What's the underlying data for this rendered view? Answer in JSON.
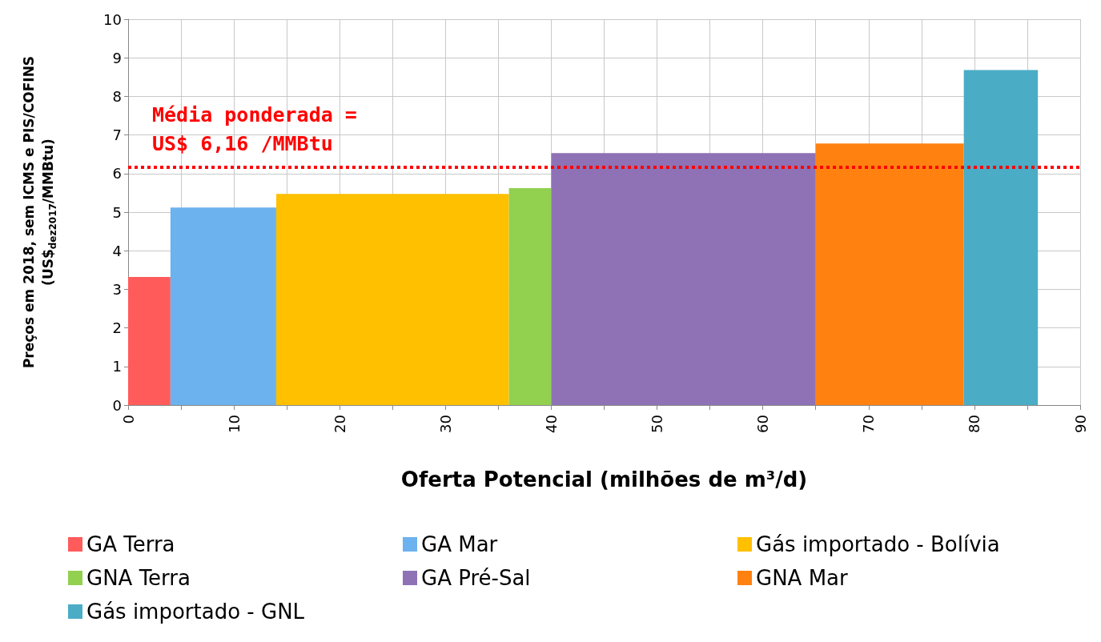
{
  "chart_data": {
    "type": "histogram",
    "xlabel": "Oferta Potencial (milhões de m³/d)",
    "ylabel": "Preços em 2018, sem ICMS e PIS/COFINS\n(US$$_{dez2017}$/MMBtu)",
    "bins": [
      0,
      4,
      14,
      36,
      40,
      65,
      79,
      86
    ],
    "series": [
      {
        "name": "GA Terra",
        "color": "#ff5b5b",
        "values": [
          3.32,
          null,
          null,
          null,
          null,
          null,
          null
        ]
      },
      {
        "name": "GA Mar",
        "color": "#6cb2ee",
        "values": [
          null,
          5.12,
          null,
          null,
          null,
          null,
          null
        ]
      },
      {
        "name": "Gás importado - Bolívia",
        "color": "#ffc000",
        "values": [
          null,
          null,
          5.47,
          null,
          null,
          null,
          null
        ]
      },
      {
        "name": "GNA Terra",
        "color": "#92d050",
        "values": [
          null,
          null,
          null,
          5.62,
          null,
          null,
          null
        ]
      },
      {
        "name": "GA Pré-Sal",
        "color": "#8e72b5",
        "values": [
          null,
          null,
          null,
          null,
          6.53,
          null,
          null
        ]
      },
      {
        "name": "GNA Mar",
        "color": "#ff8210",
        "values": [
          null,
          null,
          null,
          null,
          null,
          6.78,
          null
        ]
      },
      {
        "name": "Gás importado - GNL",
        "color": "#4bacc6",
        "values": [
          null,
          null,
          null,
          null,
          null,
          null,
          8.68
        ]
      }
    ],
    "xlim": [
      0,
      90
    ],
    "xticks": [
      0,
      {
        "value": 5,
        "label": null
      },
      10,
      {
        "value": 15,
        "label": null
      },
      20,
      {
        "value": 25,
        "label": null
      },
      30,
      {
        "value": 35,
        "label": null
      },
      40,
      {
        "value": 45,
        "label": null
      },
      50,
      {
        "value": 55,
        "label": null
      },
      60,
      {
        "value": 65,
        "label": null
      },
      70,
      {
        "value": 75,
        "label": null
      },
      80,
      {
        "value": 85,
        "label": null
      },
      90
    ],
    "ylim": [
      0,
      10
    ],
    "yticks": [
      0,
      1,
      2,
      3,
      4,
      5,
      6,
      7,
      8,
      9,
      10
    ],
    "ref_lines": [
      {
        "axis": "y",
        "value": 6.16,
        "label": "Média ponderada =\nUS$ 6,16 /MMBtu",
        "color": "#ff0000",
        "line_style": "dotted"
      }
    ],
    "grid": true,
    "legend": "bottom"
  }
}
